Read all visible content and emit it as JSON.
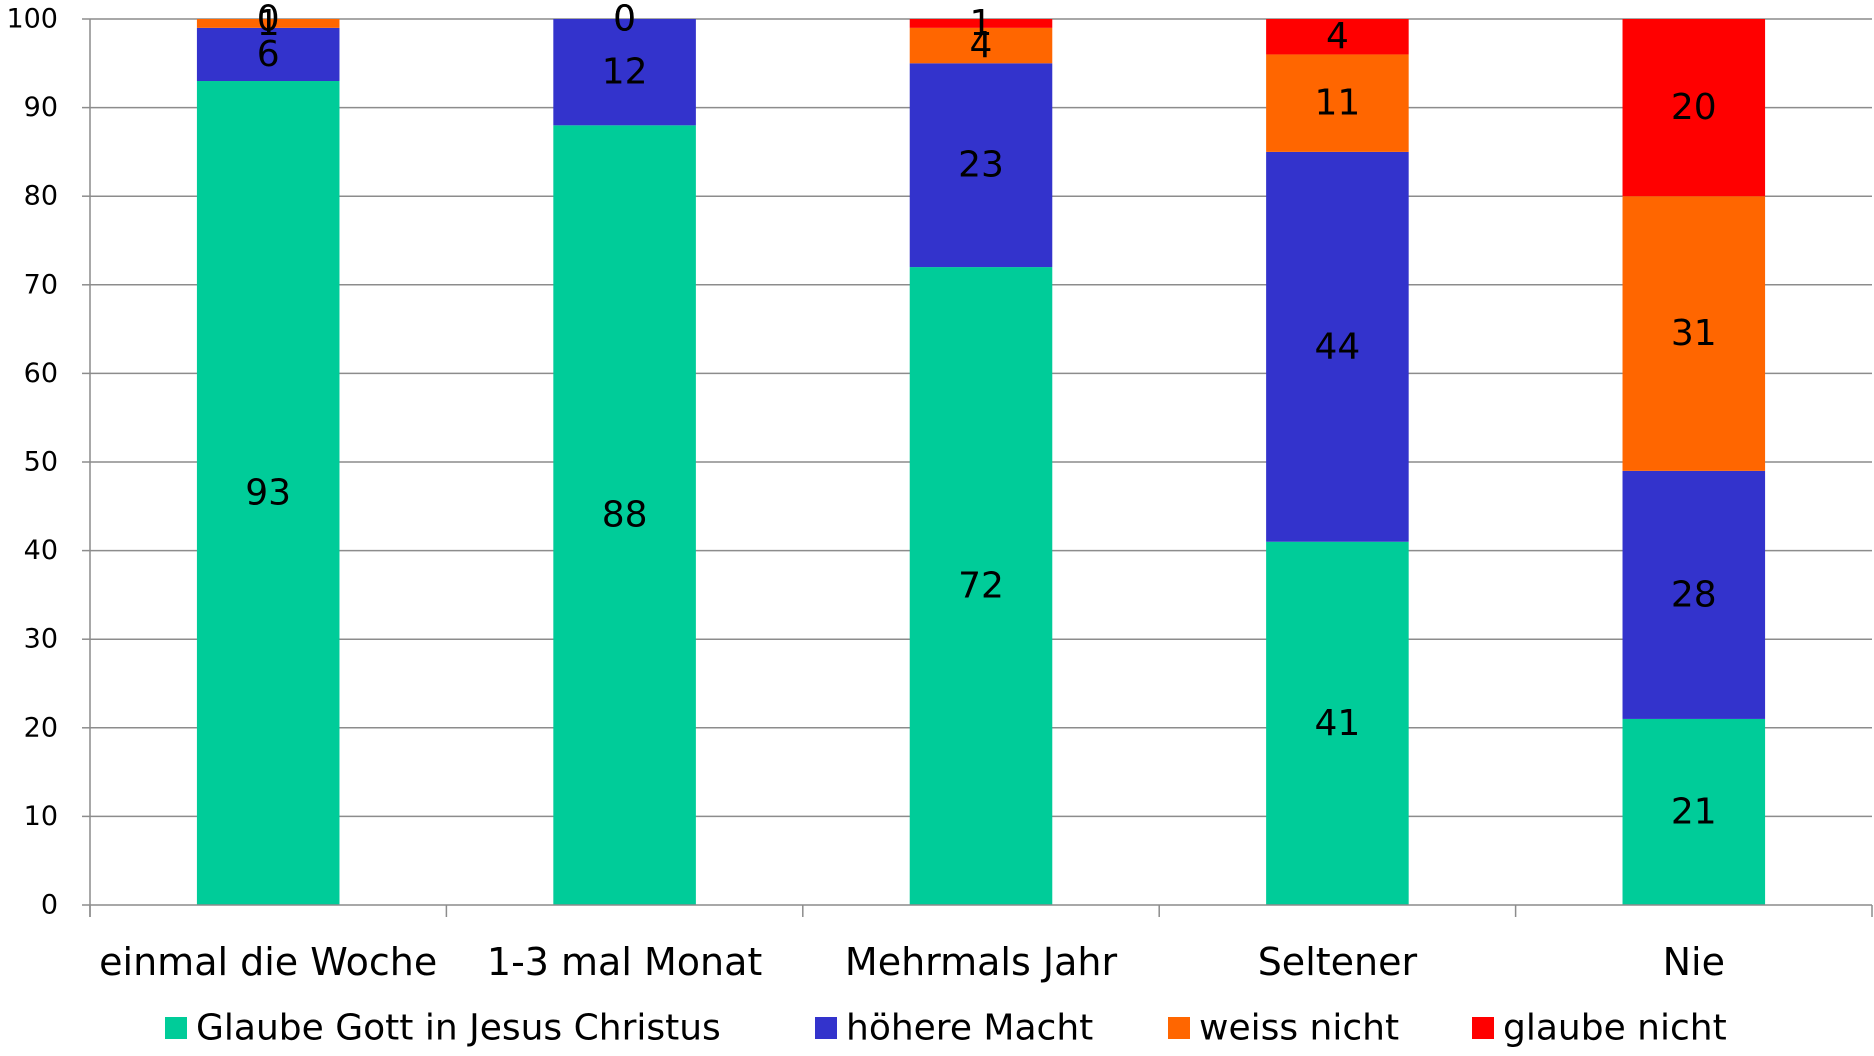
{
  "chart_data": {
    "type": "bar",
    "stacked": true,
    "categories": [
      "einmal die Woche",
      "1-3 mal Monat",
      "Mehrmals Jahr",
      "Seltener",
      "Nie"
    ],
    "series": [
      {
        "name": "Glaube Gott in Jesus Christus",
        "color": "#00CC99",
        "values": [
          93,
          88,
          72,
          41,
          21
        ]
      },
      {
        "name": "höhere Macht",
        "color": "#3333CC",
        "values": [
          6,
          12,
          23,
          44,
          28
        ]
      },
      {
        "name": "weiss nicht",
        "color": "#FF6600",
        "values": [
          1,
          0,
          4,
          11,
          31
        ]
      },
      {
        "name": "glaube nicht",
        "color": "#FF0000",
        "values": [
          0,
          0,
          1,
          4,
          20
        ]
      }
    ],
    "ylim": [
      0,
      100
    ],
    "yticks": [
      0,
      10,
      20,
      30,
      40,
      50,
      60,
      70,
      80,
      90,
      100
    ],
    "grid": true,
    "legend_position": "bottom",
    "title": "",
    "xlabel": "",
    "ylabel": ""
  }
}
